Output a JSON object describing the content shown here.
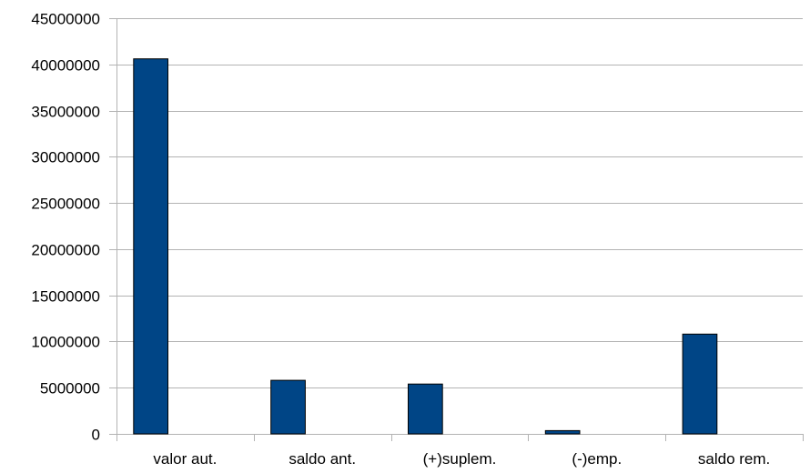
{
  "chart_data": {
    "type": "bar",
    "title": "",
    "xlabel": "",
    "ylabel": "",
    "categories": [
      "valor aut.",
      "saldo ant.",
      "(+)suplem.",
      "(-)emp.",
      "saldo rem."
    ],
    "values": [
      40600000,
      5800000,
      5400000,
      350000,
      10800000
    ],
    "ylim": [
      0,
      45000000
    ],
    "yticks": [
      0,
      5000000,
      10000000,
      15000000,
      20000000,
      25000000,
      30000000,
      35000000,
      40000000,
      45000000
    ],
    "ytick_labels": [
      "0",
      "5000000",
      "10000000",
      "15000000",
      "20000000",
      "25000000",
      "30000000",
      "35000000",
      "40000000",
      "45000000"
    ],
    "grid": true,
    "legend": "none",
    "colors": {
      "bar": "#004586",
      "bar_edge": "#000000",
      "grid": "#b3b3b3",
      "axis": "#b3b3b3"
    }
  }
}
